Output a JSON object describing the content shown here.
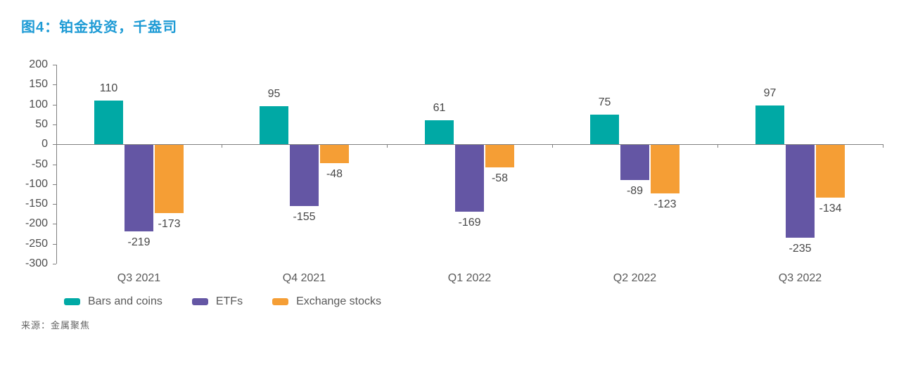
{
  "title": "图4：铂金投资，千盎司",
  "source_note": "来源：金属聚焦",
  "colors": {
    "title": "#1e9bd5",
    "axis": "#808080",
    "tick_label": "#4d4d4d",
    "data_label": "#474747",
    "source": "#666666"
  },
  "chart_data": {
    "type": "bar",
    "title": "图4：铂金投资，千盎司",
    "categories": [
      "Q3 2021",
      "Q4 2021",
      "Q1 2022",
      "Q2 2022",
      "Q3 2022"
    ],
    "series": [
      {
        "name": "Bars and coins",
        "color": "#00a9a5",
        "values": [
          110,
          95,
          61,
          75,
          97
        ]
      },
      {
        "name": "ETFs",
        "color": "#6456a4",
        "values": [
          -219,
          -155,
          -169,
          -89,
          -235
        ]
      },
      {
        "name": "Exchange stocks",
        "color": "#f59e35",
        "values": [
          -173,
          -48,
          -58,
          -123,
          -134
        ]
      }
    ],
    "ylim": [
      -300,
      200
    ],
    "yticks": [
      200,
      150,
      100,
      50,
      0,
      -50,
      -100,
      -150,
      -200,
      -250,
      -300
    ],
    "xlabel": "",
    "ylabel": "",
    "grid": false,
    "data_labels": true,
    "legend_position": "bottom"
  }
}
